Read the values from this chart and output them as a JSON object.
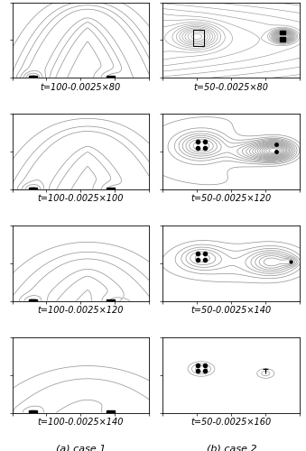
{
  "nrows": 4,
  "ncols": 2,
  "figsize": [
    3.39,
    5.0
  ],
  "dpi": 100,
  "bg_color": "#ffffff",
  "subplot_labels_left": [
    "t=100-0.0025×80",
    "t=100-0.0025×100",
    "t=100-0.0025×120",
    "t=100-0.0025×140"
  ],
  "subplot_labels_right": [
    "t=50-0.0025×80",
    "t=50-0.0025×120",
    "t=50-0.0025×140",
    "t=50-0.0025×160"
  ],
  "case_labels": [
    "(a) case 1",
    "(b) case 2"
  ],
  "contour_color": "#999999",
  "label_fontsize": 7,
  "case_fontsize": 8
}
